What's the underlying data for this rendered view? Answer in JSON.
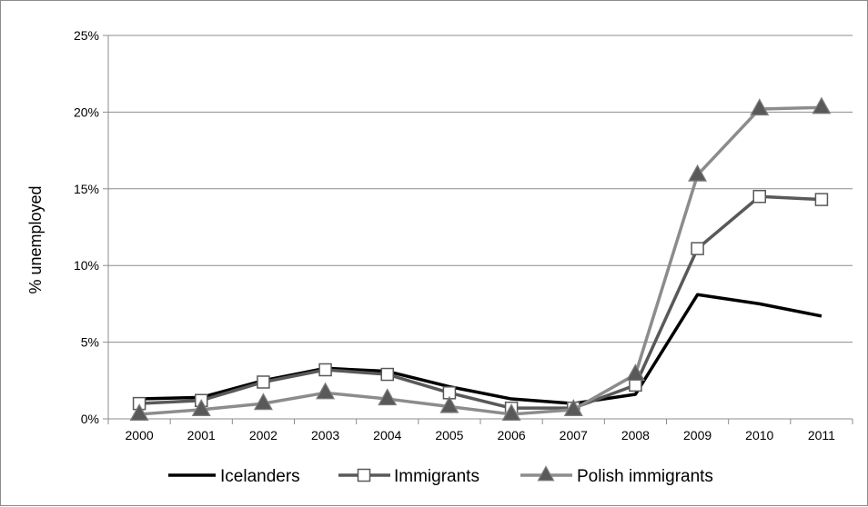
{
  "chart_data": {
    "type": "line",
    "title": "",
    "xlabel": "",
    "ylabel": "% unemployed",
    "ylim": [
      0,
      25
    ],
    "yticks": [
      "0%",
      "5%",
      "10%",
      "15%",
      "20%",
      "25%"
    ],
    "categories": [
      "2000",
      "2001",
      "2002",
      "2003",
      "2004",
      "2005",
      "2006",
      "2007",
      "2008",
      "2009",
      "2010",
      "2011"
    ],
    "grid": "horizontal",
    "legend_position": "bottom",
    "series": [
      {
        "name": "Icelanders",
        "color": "#000000",
        "marker": "none",
        "values": [
          1.3,
          1.4,
          2.5,
          3.3,
          3.1,
          2.1,
          1.3,
          1.0,
          1.6,
          8.1,
          7.5,
          6.7
        ]
      },
      {
        "name": "Immigrants",
        "color": "#595959",
        "marker": "square",
        "values": [
          1.0,
          1.2,
          2.4,
          3.2,
          2.9,
          1.7,
          0.7,
          0.7,
          2.2,
          11.1,
          14.5,
          14.3
        ]
      },
      {
        "name": "Polish immigrants",
        "color": "#8c8c8c",
        "marker": "triangle",
        "values": [
          0.3,
          0.6,
          1.0,
          1.7,
          1.3,
          0.8,
          0.3,
          0.6,
          2.9,
          15.9,
          20.2,
          20.3
        ]
      }
    ]
  }
}
